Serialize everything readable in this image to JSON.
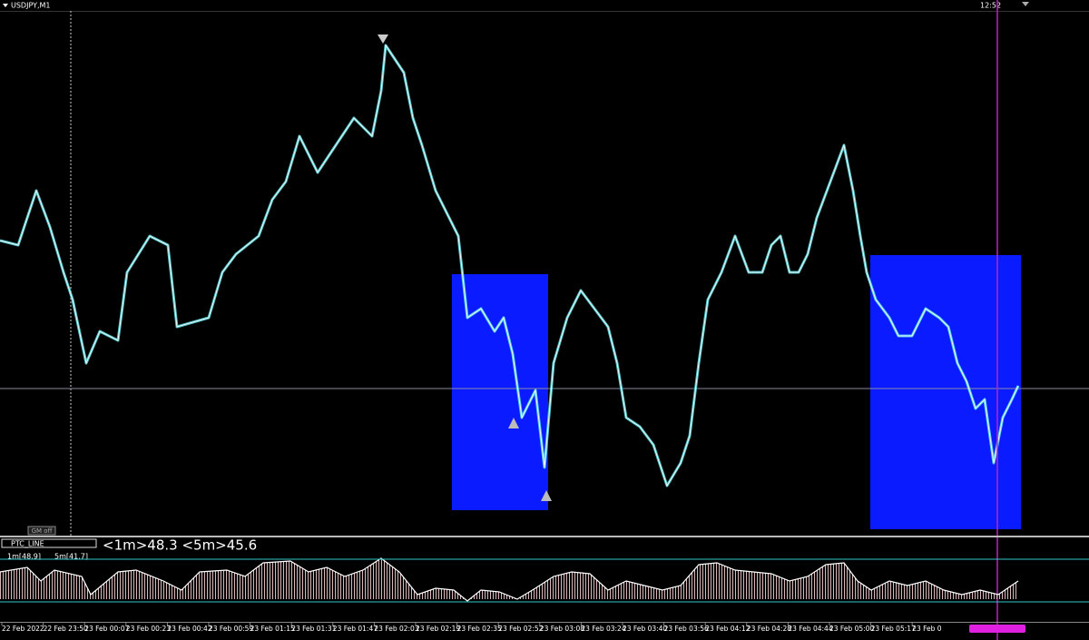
{
  "header": {
    "symbol": "USDJPY,M1",
    "time": "12:52"
  },
  "gm_label": "GM off",
  "indicator": {
    "name": "PTC_LINE",
    "summary": "<1m>48.3 <5m>45.6",
    "label_1m": "1m[48.9]",
    "label_5m": "5m[41.7]"
  },
  "time_axis": [
    "22 Feb 2022",
    "22 Feb 23:50",
    "23 Feb 00:07",
    "23 Feb 00:23",
    "23 Feb 00:42",
    "23 Feb 00:59",
    "23 Feb 01:15",
    "23 Feb 01:31",
    "23 Feb 01:47",
    "23 Feb 02:03",
    "23 Feb 02:19",
    "23 Feb 02:35",
    "23 Feb 02:52",
    "23 Feb 03:08",
    "23 Feb 03:24",
    "23 Feb 03:40",
    "23 Feb 03:56",
    "23 Feb 04:12",
    "23 Feb 04:28",
    "23 Feb 04:44",
    "23 Feb 05:00",
    "23 Feb 05:17",
    "23 Feb 0"
  ]
}
